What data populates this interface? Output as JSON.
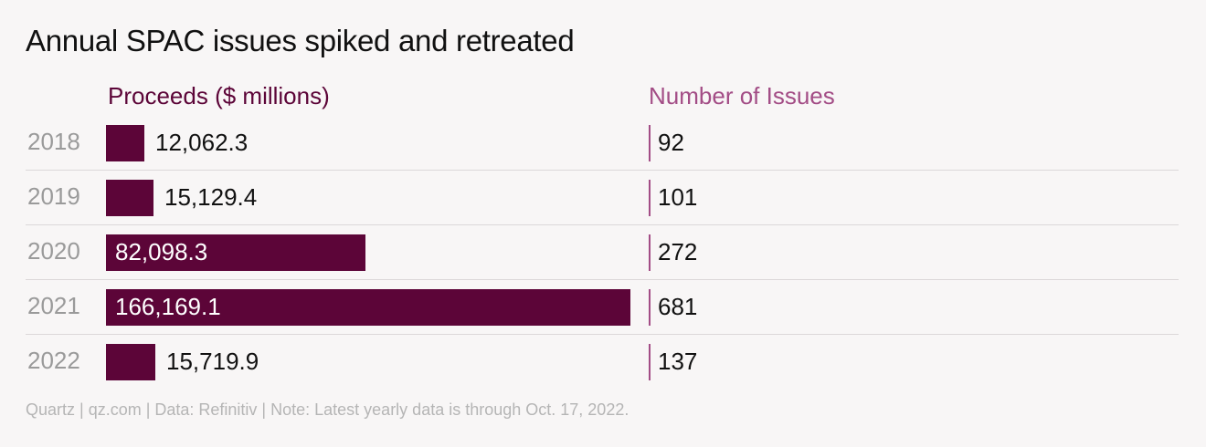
{
  "chart_data": {
    "type": "bar",
    "title": "Annual SPAC issues spiked and retreated",
    "categories": [
      "2018",
      "2019",
      "2020",
      "2021",
      "2022"
    ],
    "series": [
      {
        "name": "Proceeds ($ millions)",
        "values": [
          12062.3,
          15129.4,
          82098.3,
          166169.1,
          15719.9
        ],
        "labels": [
          "12,062.3",
          "15,129.4",
          "82,098.3",
          "166,169.1",
          "15,719.9"
        ]
      },
      {
        "name": "Number of Issues",
        "values": [
          92,
          101,
          272,
          681,
          137
        ],
        "labels": [
          "92",
          "101",
          "272",
          "681",
          "137"
        ]
      }
    ],
    "orientation": "horizontal",
    "grid": false
  },
  "colors": {
    "proceeds": "#5c0538",
    "issues": "#a34d86"
  },
  "footer": "Quartz | qz.com | Data: Refinitiv | Note: Latest yearly data is through Oct. 17, 2022."
}
